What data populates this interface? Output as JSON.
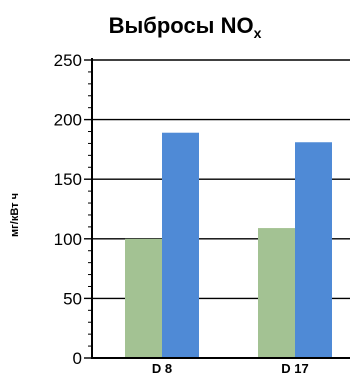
{
  "chart_data": {
    "type": "bar",
    "title": "Выбросы NO",
    "title_subscript": "x",
    "ylabel": "мг/кВт ч",
    "xlabel": "",
    "categories": [
      "D 8",
      "D 17"
    ],
    "series": [
      {
        "values": [
          100,
          109
        ],
        "color": "#a3c293"
      },
      {
        "values": [
          189,
          181
        ],
        "color": "#4f8ad6"
      }
    ],
    "ylim": [
      0,
      250
    ],
    "yticks": [
      0,
      50,
      100,
      150,
      200,
      250
    ],
    "grid": true,
    "legend": "none"
  }
}
